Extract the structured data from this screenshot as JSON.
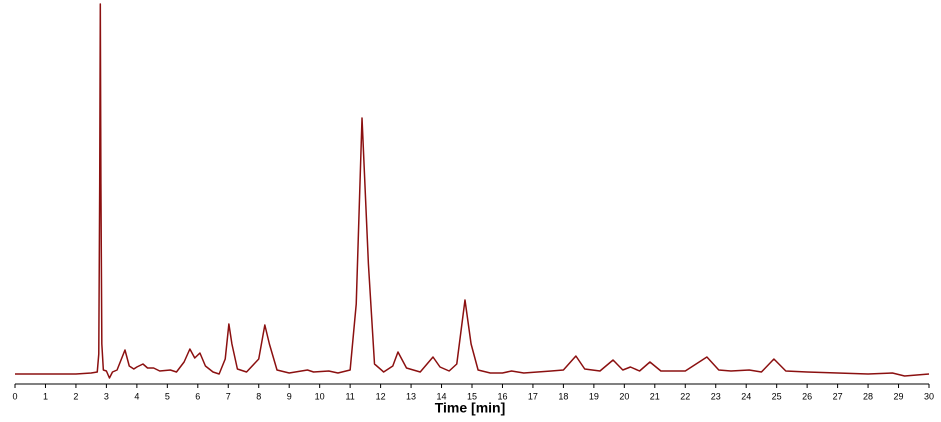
{
  "chart_data": {
    "type": "line",
    "x_label": "Time [min]",
    "series": [
      {
        "color": "#8b1010",
        "x": [
          0,
          2.0,
          2.5,
          2.7,
          2.75,
          2.78,
          2.8,
          2.82,
          2.85,
          2.9,
          3.0,
          3.1,
          3.2,
          3.35,
          3.61,
          3.75,
          3.9,
          4.0,
          4.2,
          4.35,
          4.55,
          4.75,
          5.1,
          5.3,
          5.55,
          5.74,
          5.9,
          6.07,
          6.25,
          6.5,
          6.7,
          6.9,
          7.02,
          7.12,
          7.3,
          7.6,
          8.0,
          8.2,
          8.35,
          8.6,
          9.0,
          9.6,
          9.8,
          10.3,
          10.6,
          11.0,
          11.2,
          11.39,
          11.6,
          11.8,
          12.1,
          12.4,
          12.57,
          12.85,
          13.3,
          13.72,
          13.95,
          14.25,
          14.5,
          14.77,
          14.97,
          15.2,
          15.6,
          16.0,
          16.3,
          16.7,
          17.6,
          18.0,
          18.41,
          18.7,
          19.2,
          19.63,
          19.95,
          20.2,
          20.5,
          20.84,
          21.2,
          22.0,
          22.71,
          23.1,
          23.5,
          24.1,
          24.5,
          24.91,
          25.3,
          26.0,
          28.0,
          28.8,
          29.2,
          30
        ],
        "values": [
          10,
          10,
          11,
          12,
          30,
          200,
          380,
          200,
          40,
          14,
          13,
          6,
          12,
          14,
          34,
          18,
          15,
          17,
          20,
          16,
          16,
          13,
          14,
          12,
          22,
          35,
          26,
          31,
          18,
          12,
          10,
          25,
          60,
          40,
          15,
          12,
          25,
          59,
          40,
          14,
          11,
          14,
          12,
          13,
          11,
          14,
          80,
          266,
          120,
          20,
          12,
          18,
          32,
          16,
          12,
          27,
          17,
          13,
          20,
          84,
          40,
          14,
          11,
          11,
          13,
          11,
          13,
          14,
          28,
          15,
          13,
          24,
          14,
          17,
          13,
          22,
          13,
          13,
          27,
          14,
          13,
          14,
          12,
          25,
          13,
          12,
          10,
          11,
          8,
          10
        ]
      }
    ],
    "xlim": [
      0,
      30
    ],
    "ylim": [
      0,
      384
    ],
    "xticks": [
      0,
      1,
      2,
      3,
      4,
      5,
      6,
      7,
      8,
      9,
      10,
      11,
      12,
      13,
      14,
      15,
      16,
      17,
      18,
      19,
      20,
      21,
      22,
      23,
      24,
      25,
      26,
      27,
      28,
      29,
      30
    ]
  }
}
